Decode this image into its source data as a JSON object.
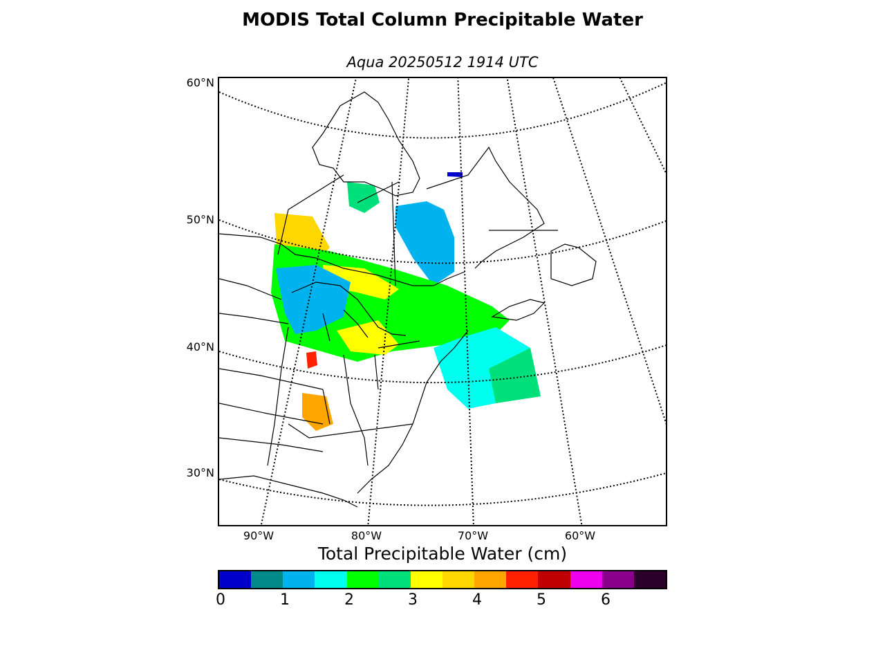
{
  "header": {
    "title": "MODIS Total Column Precipitable Water",
    "subtitle": "Aqua 20250512 1914 UTC"
  },
  "map": {
    "lat_labels": [
      "60°N",
      "50°N",
      "40°N",
      "30°N"
    ],
    "lon_labels": [
      "90°W",
      "80°W",
      "70°W",
      "60°W"
    ]
  },
  "colorbar": {
    "title": "Total Precipitable Water (cm)",
    "ticks": [
      "0",
      "1",
      "2",
      "3",
      "4",
      "5",
      "6"
    ],
    "colors": [
      "#0000cd",
      "#008b8b",
      "#00b2ee",
      "#00ffee",
      "#00ff00",
      "#00e07a",
      "#ffff00",
      "#ffd700",
      "#ffa500",
      "#ff2000",
      "#c00000",
      "#ee00ee",
      "#8b008b",
      "#2a002a"
    ]
  }
}
